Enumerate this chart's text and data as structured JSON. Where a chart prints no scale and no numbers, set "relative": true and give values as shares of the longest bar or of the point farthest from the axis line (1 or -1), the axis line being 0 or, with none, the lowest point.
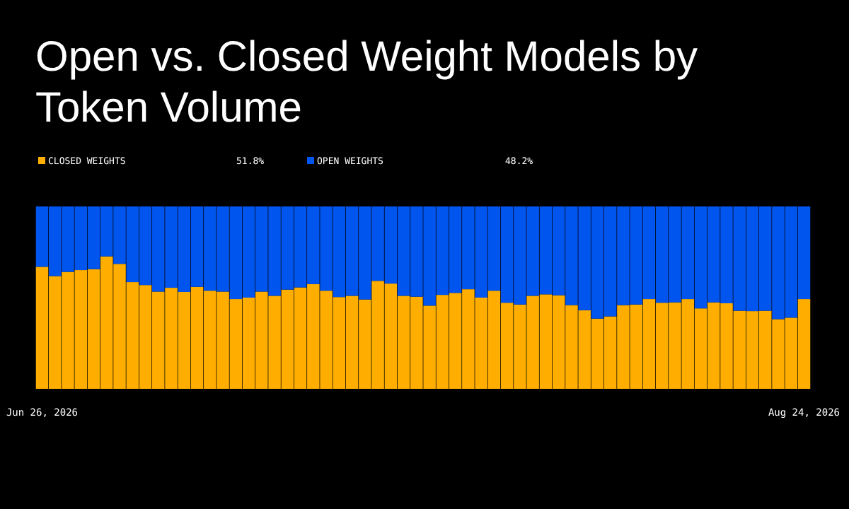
{
  "chart_data": {
    "type": "bar",
    "stacked": true,
    "relative": true,
    "title": "Open vs. Closed Weight Models by Token Volume",
    "legend": "top left",
    "categories": [
      "Jun 26, 2026",
      null,
      null,
      null,
      null,
      null,
      null,
      null,
      null,
      null,
      null,
      null,
      null,
      null,
      null,
      null,
      null,
      null,
      null,
      null,
      null,
      null,
      null,
      null,
      null,
      null,
      null,
      null,
      null,
      null,
      null,
      null,
      null,
      null,
      null,
      null,
      null,
      null,
      null,
      null,
      null,
      null,
      null,
      null,
      null,
      null,
      null,
      null,
      null,
      null,
      null,
      null,
      null,
      null,
      null,
      null,
      null,
      null,
      null,
      "Aug 24, 2026"
    ],
    "series": [
      {
        "name": "CLOSED WEIGHTS",
        "color": "#ffae00",
        "values": [
          0.669,
          0.618,
          0.641,
          0.651,
          0.656,
          0.726,
          0.685,
          0.585,
          0.569,
          0.533,
          0.554,
          0.531,
          0.559,
          0.538,
          0.533,
          0.492,
          0.5,
          0.533,
          0.51,
          0.544,
          0.556,
          0.574,
          0.538,
          0.503,
          0.51,
          0.49,
          0.592,
          0.577,
          0.51,
          0.505,
          0.456,
          0.515,
          0.526,
          0.546,
          0.5,
          0.538,
          0.472,
          0.462,
          0.51,
          0.518,
          0.513,
          0.459,
          0.431,
          0.385,
          0.397,
          0.459,
          0.462,
          0.492,
          0.472,
          0.474,
          0.492,
          0.441,
          0.474,
          0.469,
          0.428,
          0.426,
          0.428,
          0.382,
          0.39,
          0.492
        ]
      },
      {
        "name": "OPEN WEIGHTS",
        "color": "#0055ee",
        "values": [
          0.331,
          0.382,
          0.359,
          0.349,
          0.344,
          0.274,
          0.315,
          0.415,
          0.431,
          0.467,
          0.446,
          0.469,
          0.441,
          0.462,
          0.467,
          0.508,
          0.5,
          0.467,
          0.49,
          0.456,
          0.444,
          0.426,
          0.462,
          0.497,
          0.49,
          0.51,
          0.408,
          0.423,
          0.49,
          0.495,
          0.544,
          0.485,
          0.474,
          0.454,
          0.5,
          0.462,
          0.528,
          0.538,
          0.49,
          0.482,
          0.487,
          0.541,
          0.569,
          0.615,
          0.603,
          0.541,
          0.538,
          0.508,
          0.528,
          0.526,
          0.508,
          0.559,
          0.526,
          0.531,
          0.572,
          0.574,
          0.572,
          0.618,
          0.61,
          0.508
        ]
      }
    ],
    "annotations": [
      "51.8%",
      "48.2%"
    ]
  }
}
